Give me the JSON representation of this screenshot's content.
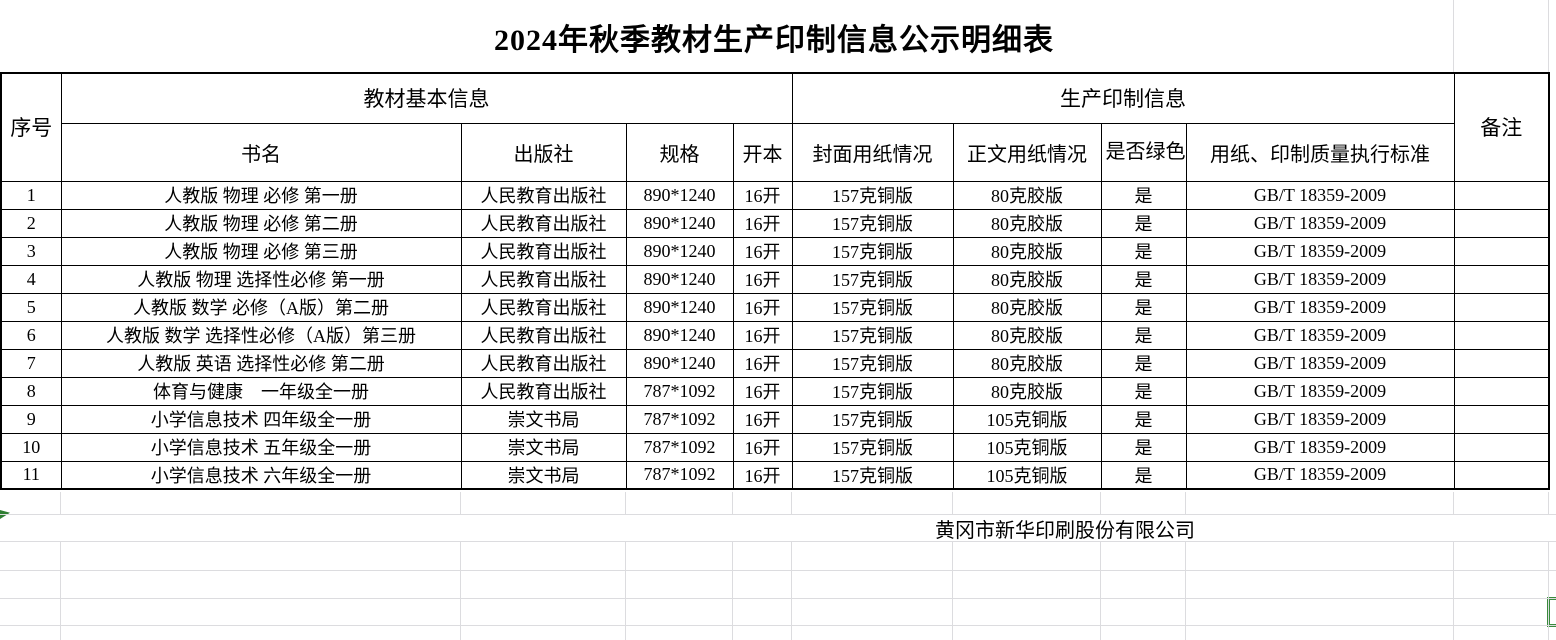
{
  "title": "2024年秋季教材生产印制信息公示明细表",
  "footer": {
    "company": "黄冈市新华印刷股份有限公司"
  },
  "colors": {
    "table_border": "#000000",
    "gridline": "#dcdcdf",
    "accent_green": "#3a8a3d"
  },
  "table": {
    "group_headers": {
      "serial": "序号",
      "basic_info": "教材基本信息",
      "production_info": "生产印制信息",
      "remark": "备注"
    },
    "sub_headers": {
      "book": "书名",
      "publisher": "出版社",
      "spec": "规格",
      "format": "开本",
      "cover_paper": "封面用纸情况",
      "body_paper": "正文用纸情况",
      "green_print": "是否绿色印刷",
      "standard": "用纸、印制质量执行标准"
    },
    "rows": [
      {
        "no": "1",
        "book": "人教版 物理 必修 第一册",
        "publisher": "人民教育出版社",
        "spec": "890*1240",
        "format": "16开",
        "cover_paper": "157克铜版",
        "body_paper": "80克胶版",
        "green": "是",
        "standard": "GB/T 18359-2009",
        "remark": ""
      },
      {
        "no": "2",
        "book": "人教版 物理 必修 第二册",
        "publisher": "人民教育出版社",
        "spec": "890*1240",
        "format": "16开",
        "cover_paper": "157克铜版",
        "body_paper": "80克胶版",
        "green": "是",
        "standard": "GB/T 18359-2009",
        "remark": ""
      },
      {
        "no": "3",
        "book": "人教版 物理 必修 第三册",
        "publisher": "人民教育出版社",
        "spec": "890*1240",
        "format": "16开",
        "cover_paper": "157克铜版",
        "body_paper": "80克胶版",
        "green": "是",
        "standard": "GB/T 18359-2009",
        "remark": ""
      },
      {
        "no": "4",
        "book": "人教版 物理 选择性必修 第一册",
        "publisher": "人民教育出版社",
        "spec": "890*1240",
        "format": "16开",
        "cover_paper": "157克铜版",
        "body_paper": "80克胶版",
        "green": "是",
        "standard": "GB/T 18359-2009",
        "remark": ""
      },
      {
        "no": "5",
        "book": "人教版 数学 必修（A版）第二册",
        "publisher": "人民教育出版社",
        "spec": "890*1240",
        "format": "16开",
        "cover_paper": "157克铜版",
        "body_paper": "80克胶版",
        "green": "是",
        "standard": "GB/T 18359-2009",
        "remark": ""
      },
      {
        "no": "6",
        "book": "人教版 数学 选择性必修（A版）第三册",
        "publisher": "人民教育出版社",
        "spec": "890*1240",
        "format": "16开",
        "cover_paper": "157克铜版",
        "body_paper": "80克胶版",
        "green": "是",
        "standard": "GB/T 18359-2009",
        "remark": ""
      },
      {
        "no": "7",
        "book": "人教版 英语 选择性必修 第二册",
        "publisher": "人民教育出版社",
        "spec": "890*1240",
        "format": "16开",
        "cover_paper": "157克铜版",
        "body_paper": "80克胶版",
        "green": "是",
        "standard": "GB/T 18359-2009",
        "remark": ""
      },
      {
        "no": "8",
        "book": "体育与健康　一年级全一册",
        "publisher": "人民教育出版社",
        "spec": "787*1092",
        "format": "16开",
        "cover_paper": "157克铜版",
        "body_paper": "80克胶版",
        "green": "是",
        "standard": "GB/T 18359-2009",
        "remark": ""
      },
      {
        "no": "9",
        "book": "小学信息技术 四年级全一册",
        "publisher": "崇文书局",
        "spec": "787*1092",
        "format": "16开",
        "cover_paper": "157克铜版",
        "body_paper": "105克铜版",
        "green": "是",
        "standard": "GB/T 18359-2009",
        "remark": ""
      },
      {
        "no": "10",
        "book": "小学信息技术 五年级全一册",
        "publisher": "崇文书局",
        "spec": "787*1092",
        "format": "16开",
        "cover_paper": "157克铜版",
        "body_paper": "105克铜版",
        "green": "是",
        "standard": "GB/T 18359-2009",
        "remark": ""
      },
      {
        "no": "11",
        "book": "小学信息技术 六年级全一册",
        "publisher": "崇文书局",
        "spec": "787*1092",
        "format": "16开",
        "cover_paper": "157克铜版",
        "body_paper": "105克铜版",
        "green": "是",
        "standard": "GB/T 18359-2009",
        "remark": ""
      }
    ]
  }
}
